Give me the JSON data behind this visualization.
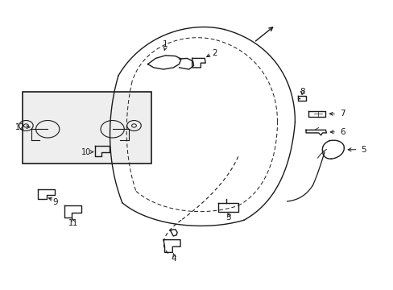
{
  "background_color": "#ffffff",
  "line_color": "#1a1a1a",
  "label_color": "#000000",
  "box_fill": "#eeeeee",
  "fig_width": 4.89,
  "fig_height": 3.6,
  "dpi": 100
}
